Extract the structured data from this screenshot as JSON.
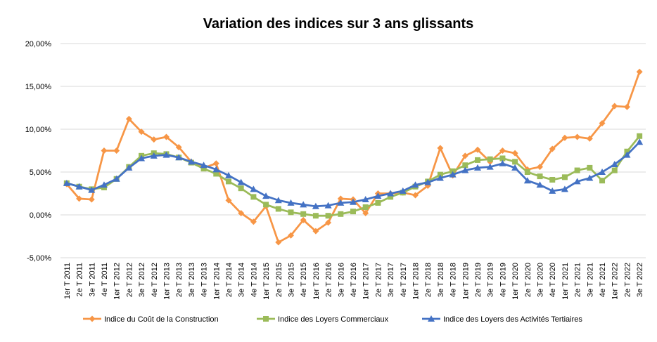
{
  "chart_data": {
    "type": "line",
    "title": "Variation des indices sur 3 ans glissants",
    "xlabel": "",
    "ylabel": "",
    "ylim": [
      -0.05,
      0.2
    ],
    "y_ticks": [
      -0.05,
      0.0,
      0.05,
      0.1,
      0.15,
      0.2
    ],
    "y_tick_labels": [
      "-5,00%",
      "0,00%",
      "5,00%",
      "10,00%",
      "15,00%",
      "20,00%"
    ],
    "grid": true,
    "legend_position": "bottom",
    "categories": [
      "1er T 2011",
      "2e T 2011",
      "3e T 2011",
      "4e T 2011",
      "1er T 2012",
      "2e T 2012",
      "3e T 2012",
      "4e T 2012",
      "1er T 2013",
      "2e T 2013",
      "3e T 2013",
      "4e T 2013",
      "1er T 2014",
      "2e T 2014",
      "3e T 2014",
      "4e T 2014",
      "1er T 2015",
      "2e T 2015",
      "3e T 2015",
      "4e T 2015",
      "1er T 2016",
      "2e T 2016",
      "3e T 2016",
      "4e T 2016",
      "1er T 2017",
      "2e T 2017",
      "3e T 2017",
      "4e T 2017",
      "1er T 2018",
      "2e T 2018",
      "3e T 2018",
      "4e T 2018",
      "1er T 2019",
      "2e T 2019",
      "3e T 2019",
      "4e T 2019",
      "1er T 2020",
      "2e T 2020",
      "3e T 2020",
      "4e T 2020",
      "1er T 2021",
      "2e T 2021",
      "3e T 2021",
      "4e T 2021",
      "1er T 2022",
      "2e T 2022",
      "3e T 2022"
    ],
    "series": [
      {
        "name": "Indice du Coût de la Construction",
        "color": "#F79646",
        "marker": "diamond",
        "values": [
          0.036,
          0.019,
          0.018,
          0.075,
          0.075,
          0.112,
          0.097,
          0.088,
          0.091,
          0.079,
          0.062,
          0.055,
          0.06,
          0.017,
          0.002,
          -0.008,
          0.01,
          -0.032,
          -0.024,
          -0.006,
          -0.019,
          -0.009,
          0.019,
          0.018,
          0.002,
          0.025,
          0.025,
          0.026,
          0.023,
          0.034,
          0.078,
          0.046,
          0.069,
          0.076,
          0.062,
          0.075,
          0.072,
          0.053,
          0.056,
          0.077,
          0.09,
          0.091,
          0.089,
          0.107,
          0.127,
          0.126,
          0.167
        ]
      },
      {
        "name": "Indice des Loyers Commerciaux",
        "color": "#9BBB59",
        "marker": "square",
        "values": [
          0.037,
          0.033,
          0.03,
          0.032,
          0.042,
          0.056,
          0.069,
          0.072,
          0.071,
          0.067,
          0.061,
          0.054,
          0.048,
          0.039,
          0.031,
          0.021,
          0.012,
          0.007,
          0.003,
          0.001,
          -0.001,
          -0.001,
          0.001,
          0.004,
          0.009,
          0.014,
          0.021,
          0.026,
          0.033,
          0.039,
          0.047,
          0.051,
          0.058,
          0.064,
          0.065,
          0.066,
          0.062,
          0.05,
          0.045,
          0.041,
          0.044,
          0.052,
          0.055,
          0.04,
          0.052,
          0.074,
          0.092
        ]
      },
      {
        "name": "Indice des Loyers des Activités Tertiaires",
        "color": "#4472C4",
        "marker": "triangle",
        "values": [
          0.037,
          0.033,
          0.029,
          0.035,
          0.042,
          0.055,
          0.066,
          0.069,
          0.07,
          0.067,
          0.062,
          0.058,
          0.053,
          0.046,
          0.038,
          0.03,
          0.022,
          0.017,
          0.014,
          0.012,
          0.01,
          0.011,
          0.014,
          0.015,
          0.018,
          0.022,
          0.025,
          0.028,
          0.035,
          0.038,
          0.043,
          0.047,
          0.052,
          0.055,
          0.056,
          0.06,
          0.055,
          0.04,
          0.035,
          0.028,
          0.03,
          0.039,
          0.043,
          0.05,
          0.059,
          0.07,
          0.085
        ]
      }
    ]
  }
}
